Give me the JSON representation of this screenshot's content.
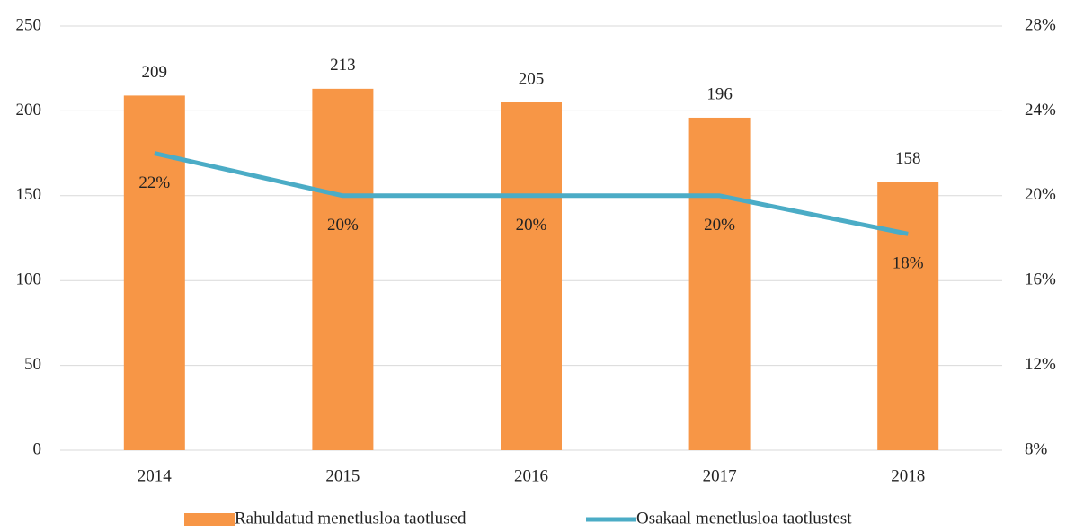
{
  "chart_data": {
    "type": "bar_line",
    "categories": [
      "2014",
      "2015",
      "2016",
      "2017",
      "2018"
    ],
    "series": [
      {
        "name": "Rahuldatud menetlusloa taotlused",
        "color": "#f79646",
        "type": "bar",
        "values": [
          209,
          213,
          205,
          196,
          158
        ]
      },
      {
        "name": "Osakaal menetlusloa taotlustest",
        "color": "#4bacc6",
        "type": "line",
        "axis": "y2",
        "values": [
          22,
          20,
          20,
          20,
          18.2
        ],
        "value_labels": [
          "22%",
          "20%",
          "20%",
          "20%",
          "18%"
        ]
      }
    ],
    "ylim": [
      0,
      250
    ],
    "yticks": [
      0,
      50,
      100,
      150,
      200,
      250
    ],
    "y2lim": [
      8,
      28
    ],
    "y2ticks": [
      {
        "value": 8,
        "label": "8%"
      },
      {
        "value": 12,
        "label": "12%"
      },
      {
        "value": 16,
        "label": "16%"
      },
      {
        "value": 20,
        "label": "20%"
      },
      {
        "value": 24,
        "label": "24%"
      },
      {
        "value": 28,
        "label": "28%"
      }
    ],
    "grid": true,
    "legend": "bottom"
  }
}
